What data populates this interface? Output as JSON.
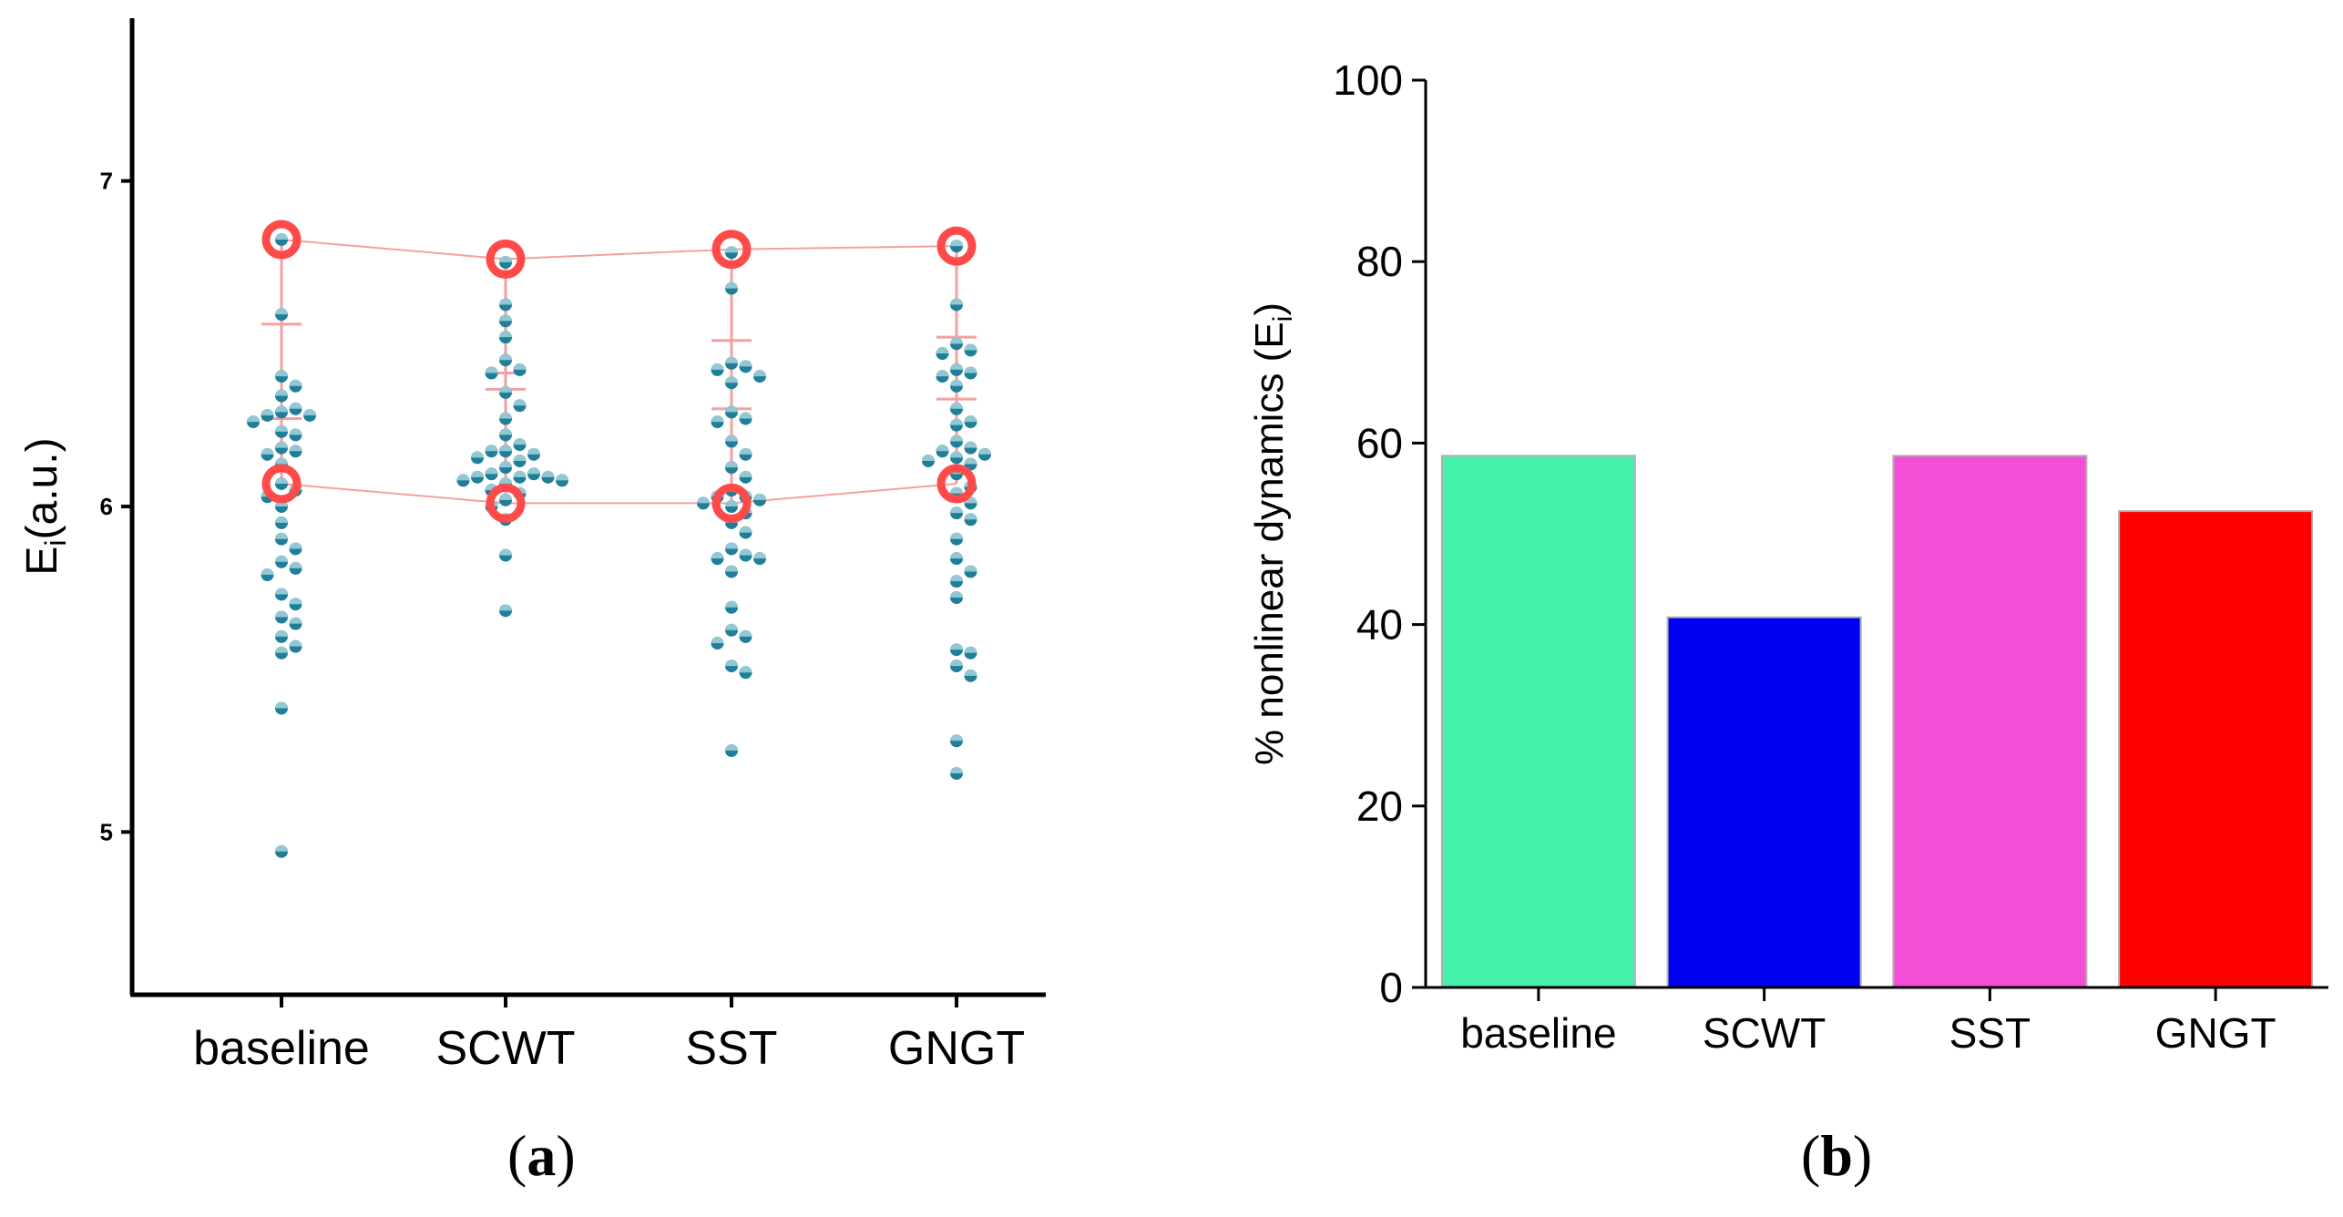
{
  "chart_data": [
    {
      "type": "scatter",
      "panel_label": "a",
      "ylabel": {
        "main": "E",
        "sub": "i",
        "suffix": "(a.u.)"
      },
      "categories": [
        "baseline",
        "SCWT",
        "SST",
        "GNGT"
      ],
      "ylim": [
        4.5,
        7.5
      ],
      "yticks": [
        5,
        6,
        7
      ],
      "grid": false,
      "colors": {
        "points": "#1f7f99",
        "summary": "#ff4a4a",
        "line": "#f4a0a0"
      },
      "points": [
        [
          6.82,
          6.59,
          6.4,
          6.37,
          6.34,
          6.3,
          6.29,
          6.28,
          6.28,
          6.26,
          6.23,
          6.22,
          6.18,
          6.17,
          6.16,
          6.13,
          6.07,
          6.05,
          6.03,
          6.0,
          5.95,
          5.9,
          5.87,
          5.83,
          5.81,
          5.79,
          5.73,
          5.7,
          5.66,
          5.64,
          5.6,
          5.57,
          5.55,
          5.38,
          4.94
        ],
        [
          6.75,
          6.62,
          6.57,
          6.52,
          6.45,
          6.42,
          6.41,
          6.35,
          6.31,
          6.27,
          6.22,
          6.19,
          6.17,
          6.17,
          6.16,
          6.15,
          6.14,
          6.12,
          6.1,
          6.1,
          6.09,
          6.09,
          6.09,
          6.08,
          6.08,
          6.07,
          6.05,
          6.04,
          6.02,
          6.0,
          5.96,
          5.85,
          5.68
        ],
        [
          6.78,
          6.67,
          6.44,
          6.43,
          6.42,
          6.4,
          6.38,
          6.29,
          6.27,
          6.26,
          6.2,
          6.16,
          6.12,
          6.09,
          6.05,
          6.03,
          6.03,
          6.02,
          6.01,
          6.0,
          5.98,
          5.95,
          5.92,
          5.87,
          5.85,
          5.84,
          5.84,
          5.8,
          5.69,
          5.62,
          5.6,
          5.58,
          5.51,
          5.49,
          5.25
        ],
        [
          6.8,
          6.62,
          6.5,
          6.48,
          6.47,
          6.42,
          6.41,
          6.4,
          6.37,
          6.3,
          6.26,
          6.25,
          6.2,
          6.18,
          6.17,
          6.16,
          6.15,
          6.14,
          6.13,
          6.1,
          6.06,
          6.04,
          6.01,
          5.98,
          5.96,
          5.9,
          5.84,
          5.8,
          5.77,
          5.72,
          5.56,
          5.55,
          5.51,
          5.48,
          5.28,
          5.18
        ]
      ],
      "max_markers": [
        6.82,
        6.76,
        6.79,
        6.8
      ],
      "mean_markers": [
        6.07,
        6.01,
        6.01,
        6.07
      ],
      "sd_bar_tops": [
        6.56,
        6.36,
        6.51,
        6.52
      ],
      "sd_bar_bottoms": [
        6.27,
        6.41,
        6.3,
        6.33
      ]
    },
    {
      "type": "bar",
      "panel_label": "b",
      "ylabel": {
        "main": "% nonlinear dynamics (E",
        "sub": "i",
        "suffix": ")"
      },
      "categories": [
        "baseline",
        "SCWT",
        "SST",
        "GNGT"
      ],
      "values": [
        58.6,
        40.8,
        58.6,
        52.5
      ],
      "colors": [
        "#46f2ab",
        "#0000f5",
        "#f54fd7",
        "#ff0000"
      ],
      "ylim": [
        0,
        100
      ],
      "yticks": [
        0,
        20,
        40,
        60,
        80,
        100
      ],
      "grid": false
    }
  ]
}
